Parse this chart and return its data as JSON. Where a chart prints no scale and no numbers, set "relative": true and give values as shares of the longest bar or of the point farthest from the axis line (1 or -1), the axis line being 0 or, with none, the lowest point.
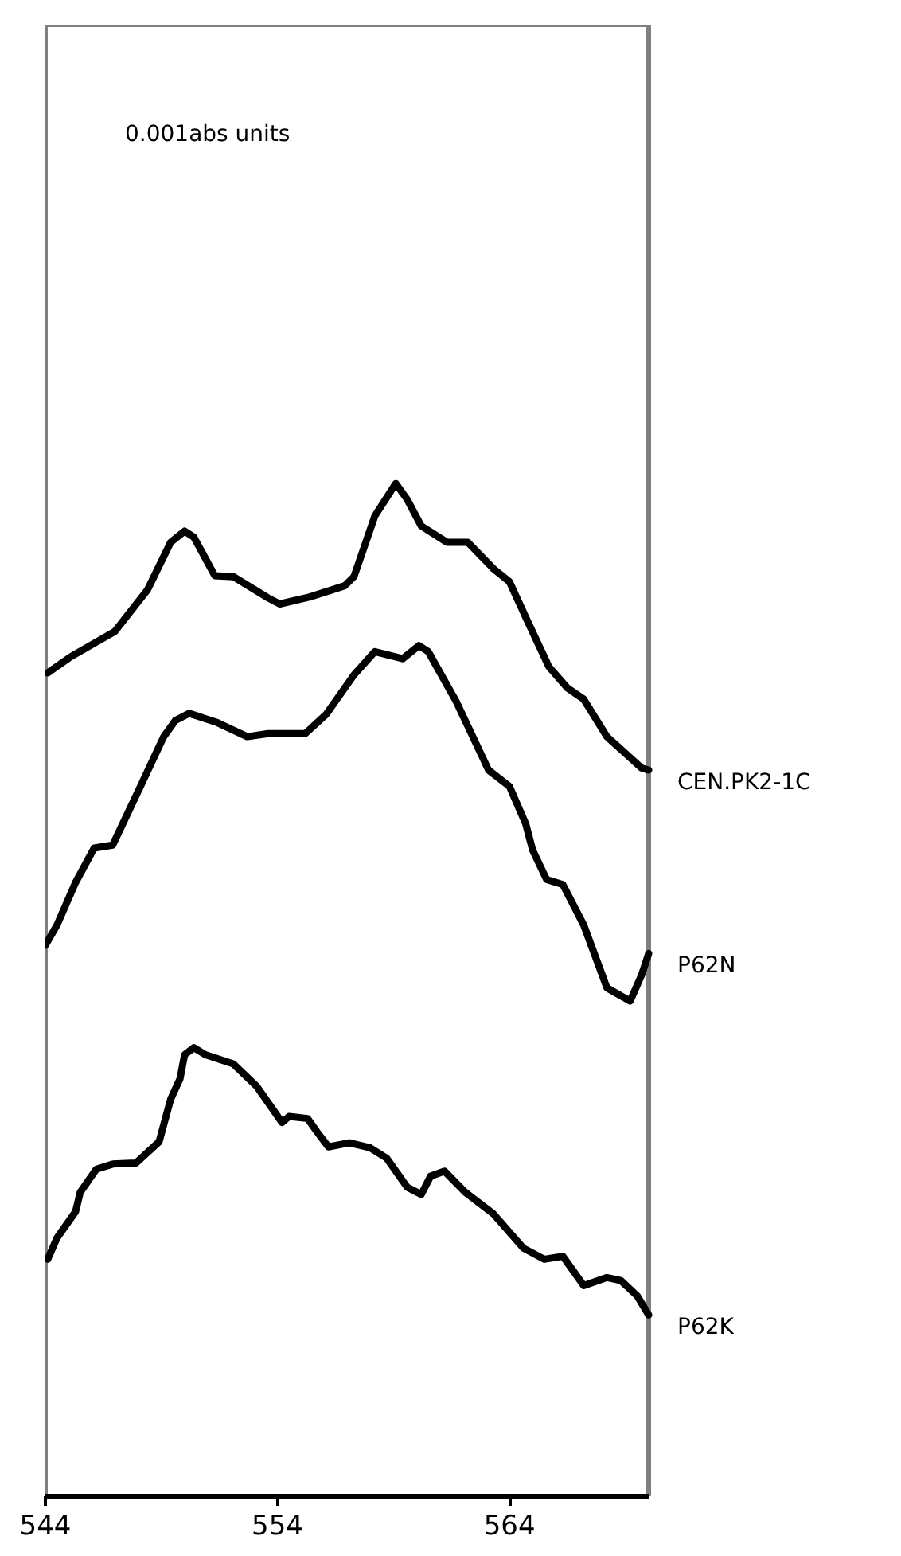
{
  "chart_data": {
    "type": "line",
    "relative": true,
    "xlim": [
      544,
      570
    ],
    "xticks": [
      544,
      554,
      564
    ],
    "grid": false,
    "legend": false,
    "annotations": [
      "0.001abs units"
    ],
    "series": [
      {
        "name": "CEN.PK2-1C",
        "color": "#000000",
        "x": [
          544.1,
          545.1,
          547.0,
          548.4,
          549.4,
          550.0,
          550.4,
          551.3,
          552.1,
          553.6,
          554.1,
          555.4,
          556.9,
          557.3,
          558.2,
          559.1,
          559.6,
          560.2,
          561.3,
          562.2,
          563.3,
          564.0,
          564.7,
          565.7,
          566.5,
          567.2,
          568.2,
          569.7,
          570.0
        ],
        "values": [
          0.813,
          0.829,
          0.854,
          0.895,
          0.942,
          0.953,
          0.947,
          0.909,
          0.908,
          0.887,
          0.881,
          0.888,
          0.899,
          0.908,
          0.968,
          1.0,
          0.984,
          0.958,
          0.942,
          0.942,
          0.916,
          0.903,
          0.868,
          0.819,
          0.798,
          0.787,
          0.75,
          0.719,
          0.717
        ]
      },
      {
        "name": "P62N",
        "color": "#000000",
        "x": [
          544.0,
          544.5,
          545.3,
          546.1,
          546.9,
          548.1,
          549.1,
          549.6,
          550.2,
          551.4,
          552.7,
          553.6,
          555.2,
          556.1,
          557.3,
          558.2,
          559.4,
          560.1,
          560.5,
          561.7,
          563.1,
          564.0,
          564.7,
          565.0,
          565.6,
          566.3,
          567.2,
          568.2,
          569.2,
          569.7,
          570.0
        ],
        "values": [
          0.544,
          0.564,
          0.606,
          0.64,
          0.643,
          0.701,
          0.75,
          0.766,
          0.773,
          0.764,
          0.75,
          0.753,
          0.753,
          0.772,
          0.811,
          0.834,
          0.827,
          0.84,
          0.834,
          0.785,
          0.717,
          0.701,
          0.664,
          0.638,
          0.609,
          0.604,
          0.564,
          0.502,
          0.489,
          0.515,
          0.536
        ]
      },
      {
        "name": "P62K",
        "color": "#000000",
        "x": [
          544.1,
          544.5,
          545.3,
          545.5,
          546.2,
          546.9,
          547.9,
          548.9,
          549.4,
          549.8,
          550.0,
          550.4,
          550.9,
          552.1,
          553.1,
          554.2,
          554.5,
          555.3,
          555.7,
          556.2,
          557.1,
          558.0,
          558.7,
          559.6,
          560.2,
          560.6,
          561.2,
          562.1,
          563.3,
          564.6,
          565.5,
          566.3,
          567.2,
          568.2,
          568.8,
          569.5,
          570.0
        ],
        "values": [
          0.234,
          0.255,
          0.281,
          0.3,
          0.323,
          0.328,
          0.329,
          0.35,
          0.392,
          0.412,
          0.436,
          0.443,
          0.436,
          0.427,
          0.405,
          0.369,
          0.375,
          0.373,
          0.36,
          0.345,
          0.349,
          0.344,
          0.334,
          0.305,
          0.298,
          0.316,
          0.321,
          0.3,
          0.279,
          0.245,
          0.234,
          0.237,
          0.208,
          0.216,
          0.213,
          0.198,
          0.179
        ]
      }
    ]
  }
}
